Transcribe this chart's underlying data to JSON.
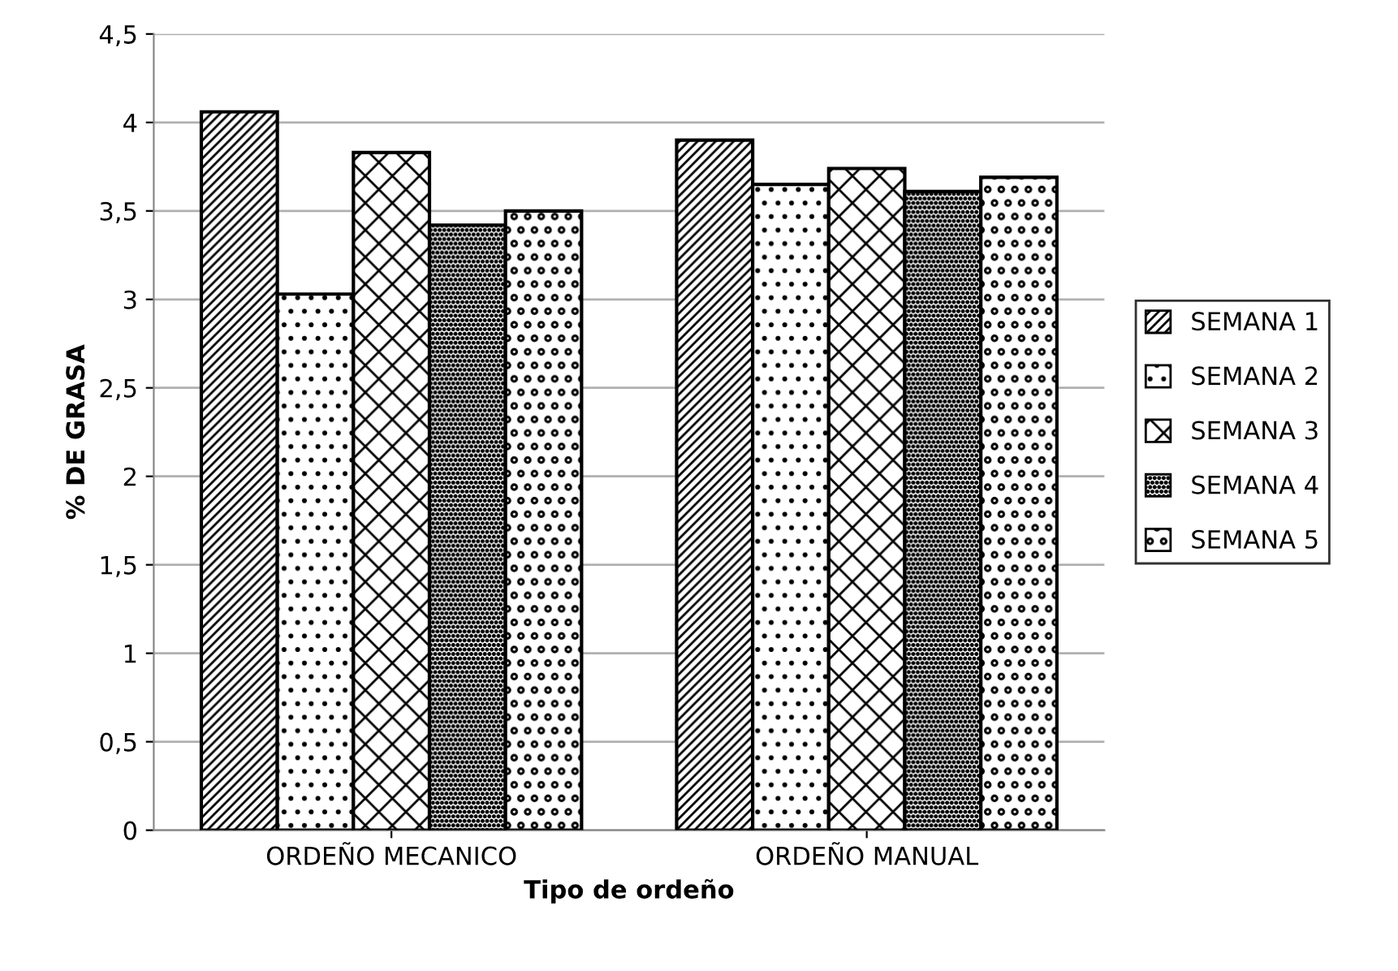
{
  "chart_data": {
    "type": "bar",
    "xlabel": "Tipo de ordeño",
    "ylabel": "% DE GRASA",
    "categories": [
      "ORDEÑO MECANICO",
      "ORDEÑO MANUAL"
    ],
    "series": [
      {
        "name": "SEMANA 1",
        "color": "#000000",
        "values": [
          4.06,
          3.9
        ]
      },
      {
        "name": "SEMANA 2",
        "color": "#000000",
        "values": [
          3.03,
          3.65
        ]
      },
      {
        "name": "SEMANA 3",
        "color": "#000000",
        "values": [
          3.83,
          3.74
        ]
      },
      {
        "name": "SEMANA 4",
        "color": "#000000",
        "values": [
          3.42,
          3.61
        ]
      },
      {
        "name": "SEMANA 5",
        "color": "#000000",
        "values": [
          3.5,
          3.69
        ]
      }
    ],
    "ylim": [
      0,
      4.5
    ],
    "yticks": [
      0,
      {
        "value": 0.5,
        "label": "0,5"
      },
      1,
      {
        "value": 1.5,
        "label": "1,5"
      },
      2,
      {
        "value": 2.5,
        "label": "2,5"
      },
      3,
      {
        "value": 3.5,
        "label": "3,5"
      },
      4,
      {
        "value": 4.5,
        "label": "4,5"
      }
    ],
    "grid": "y",
    "legend": "right"
  }
}
